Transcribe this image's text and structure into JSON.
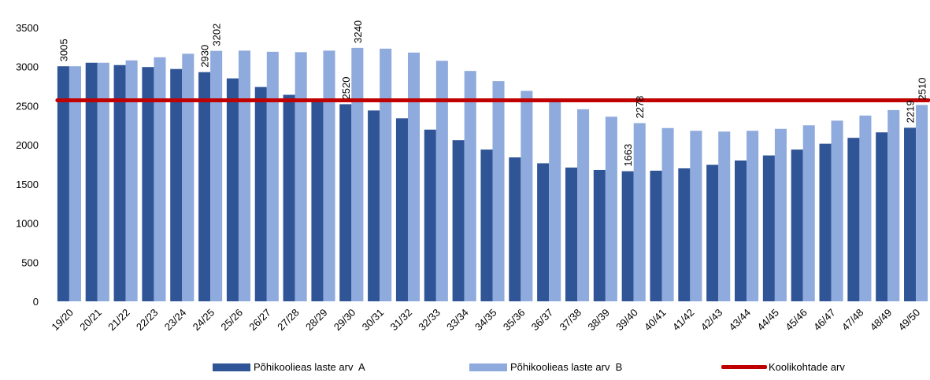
{
  "chart_data": {
    "type": "bar",
    "categories": [
      "19/20",
      "20/21",
      "21/22",
      "22/23",
      "23/24",
      "24/25",
      "25/26",
      "26/27",
      "27/28",
      "28/29",
      "29/30",
      "30/31",
      "31/32",
      "32/33",
      "33/34",
      "34/35",
      "35/36",
      "36/37",
      "37/38",
      "38/39",
      "39/40",
      "40/41",
      "41/42",
      "42/43",
      "43/44",
      "44/45",
      "45/46",
      "46/47",
      "47/48",
      "48/49",
      "49/50"
    ],
    "series": [
      {
        "name": "Põhikoolieas laste arv  A",
        "color": "#2f5597",
        "values": [
          3005,
          3050,
          3020,
          2995,
          2970,
          2930,
          2850,
          2740,
          2640,
          2590,
          2520,
          2440,
          2340,
          2195,
          2060,
          1940,
          1840,
          1765,
          1710,
          1680,
          1663,
          1670,
          1700,
          1745,
          1800,
          1865,
          1940,
          2015,
          2090,
          2160,
          2219
        ]
      },
      {
        "name": "Põhikoolieas laste arv  B",
        "color": "#8faadc",
        "values": [
          3005,
          3050,
          3080,
          3120,
          3165,
          3202,
          3205,
          3190,
          3185,
          3205,
          3240,
          3230,
          3180,
          3075,
          2945,
          2815,
          2690,
          2570,
          2455,
          2360,
          2278,
          2215,
          2180,
          2170,
          2180,
          2205,
          2250,
          2310,
          2375,
          2445,
          2510
        ]
      },
      {
        "name": "Koolikohtade arv",
        "type": "line",
        "color": "#c00000",
        "value": 2570
      }
    ],
    "ylim": [
      0,
      3500
    ],
    "yticks": [
      0,
      500,
      1000,
      1500,
      2000,
      2500,
      3000,
      3500
    ],
    "data_labels": [
      {
        "series": 0,
        "index": 0,
        "text": "3005"
      },
      {
        "series": 0,
        "index": 5,
        "text": "2930"
      },
      {
        "series": 1,
        "index": 5,
        "text": "3202"
      },
      {
        "series": 0,
        "index": 10,
        "text": "2520"
      },
      {
        "series": 1,
        "index": 10,
        "text": "3240"
      },
      {
        "series": 0,
        "index": 20,
        "text": "1663"
      },
      {
        "series": 1,
        "index": 20,
        "text": "2278"
      },
      {
        "series": 0,
        "index": 30,
        "text": "2219"
      },
      {
        "series": 1,
        "index": 30,
        "text": "2510"
      }
    ],
    "grid": false,
    "legend_position": "bottom"
  }
}
